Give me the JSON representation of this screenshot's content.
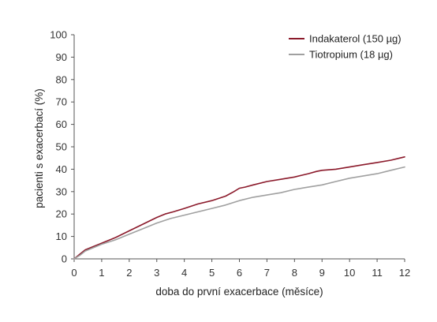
{
  "chart_data": {
    "type": "line",
    "title": "",
    "xlabel": "doba do první exacerbace (měsíce)",
    "ylabel": "pacienti s exacerbací (%)",
    "xlim": [
      0,
      12
    ],
    "ylim": [
      0,
      100
    ],
    "x_ticks": [
      0,
      1,
      2,
      3,
      4,
      5,
      6,
      7,
      8,
      9,
      10,
      11,
      12
    ],
    "y_ticks": [
      0,
      10,
      20,
      30,
      40,
      50,
      60,
      70,
      80,
      90,
      100
    ],
    "grid": false,
    "legend_position": "top-right",
    "series": [
      {
        "name": "Indakaterol (150 µg)",
        "color": "#8b1a2b",
        "x": [
          0,
          0.2,
          0.4,
          0.6,
          1,
          1.5,
          2,
          2.5,
          3,
          3.3,
          3.6,
          4,
          4.5,
          5,
          5.5,
          5.8,
          6,
          6.2,
          6.5,
          7,
          7.5,
          8,
          8.5,
          8.8,
          9,
          9.5,
          10,
          10.5,
          11,
          11.5,
          12
        ],
        "y": [
          0,
          2,
          4,
          5,
          7,
          9.5,
          12.5,
          15.5,
          18.5,
          20,
          21,
          22.5,
          24.5,
          26,
          28,
          30,
          31.5,
          32,
          33,
          34.5,
          35.5,
          36.5,
          38,
          39,
          39.5,
          40,
          41,
          42,
          43,
          44,
          45.5
        ]
      },
      {
        "name": "Tiotropium (18 µg)",
        "color": "#a0a0a0",
        "x": [
          0,
          0.2,
          0.4,
          0.6,
          1,
          1.5,
          2,
          2.5,
          3,
          3.5,
          4,
          4.5,
          5,
          5.5,
          6,
          6.5,
          7,
          7.5,
          8,
          8.5,
          9,
          9.5,
          10,
          10.5,
          11,
          11.5,
          12
        ],
        "y": [
          0,
          1.5,
          3.5,
          4.5,
          6.5,
          8.5,
          11,
          13.5,
          16,
          18,
          19.5,
          21,
          22.5,
          24,
          26,
          27.5,
          28.5,
          29.5,
          31,
          32,
          33,
          34.5,
          36,
          37,
          38,
          39.5,
          41
        ]
      }
    ]
  }
}
